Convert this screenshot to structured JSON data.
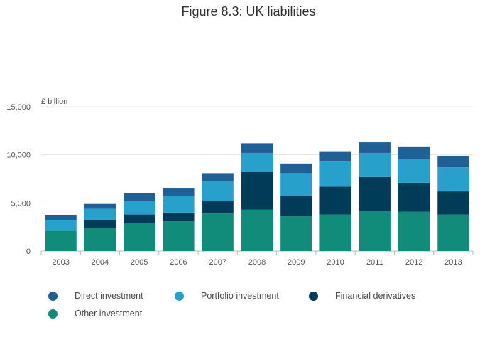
{
  "page": {
    "title": "Figure 8.3: UK liabilities"
  },
  "chart_data": {
    "type": "bar",
    "stacked": true,
    "title": "Figure 8.3: UK liabilities",
    "ylabel": "£ billion",
    "xlabel": "",
    "ylim": [
      0,
      15000
    ],
    "yticks": [
      0,
      5000,
      10000,
      15000
    ],
    "ytick_labels": [
      "0",
      "5,000",
      "10,000",
      "15,000"
    ],
    "grid": true,
    "legend_position": "bottom",
    "categories": [
      "2003",
      "2004",
      "2005",
      "2006",
      "2007",
      "2008",
      "2009",
      "2010",
      "2011",
      "2012",
      "2013"
    ],
    "series": [
      {
        "name": "Other investment",
        "color": "#118c7b",
        "values": [
          2100,
          2400,
          2900,
          3100,
          3900,
          4300,
          3600,
          3800,
          4200,
          4100,
          3800
        ]
      },
      {
        "name": "Financial derivatives",
        "color": "#003c57",
        "values": [
          0,
          800,
          900,
          900,
          1300,
          3900,
          2100,
          2900,
          3500,
          3000,
          2400
        ]
      },
      {
        "name": "Portfolio investment",
        "color": "#27a0cc",
        "values": [
          1100,
          1200,
          1400,
          1700,
          2100,
          2000,
          2400,
          2600,
          2500,
          2500,
          2500
        ]
      },
      {
        "name": "Direct investment",
        "color": "#206095",
        "values": [
          500,
          500,
          800,
          800,
          800,
          1000,
          1000,
          1000,
          1100,
          1200,
          1200
        ]
      }
    ],
    "legend_order": [
      "Direct investment",
      "Portfolio investment",
      "Financial derivatives",
      "Other investment"
    ]
  }
}
